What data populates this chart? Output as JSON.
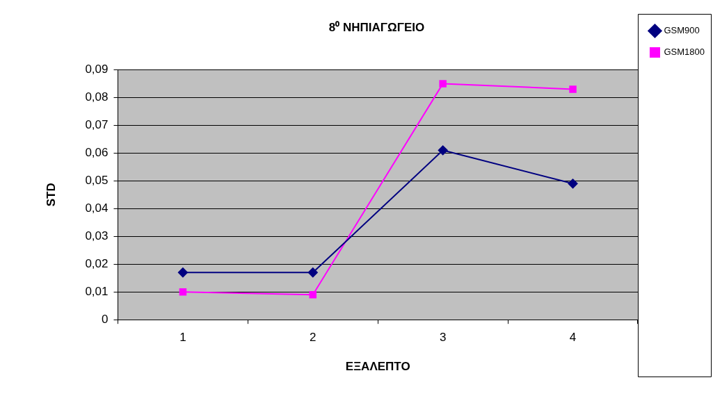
{
  "chart_data": {
    "type": "line",
    "title": "8⁰ ΝΗΠΙΑΓΩΓΕΙΟ",
    "xlabel": "ΕΞΑΛΕΠΤΟ",
    "ylabel": "STD",
    "categories": [
      "1",
      "2",
      "3",
      "4"
    ],
    "series": [
      {
        "name": "GSM900",
        "color": "#000080",
        "marker": "diamond",
        "values": [
          0.017,
          0.017,
          0.061,
          0.049
        ]
      },
      {
        "name": "GSM1800",
        "color": "#ff00ff",
        "marker": "square",
        "values": [
          0.01,
          0.009,
          0.085,
          0.083
        ]
      }
    ],
    "ylim": [
      0,
      0.09
    ],
    "yticks": [
      {
        "value": 0,
        "label": "0"
      },
      {
        "value": 0.01,
        "label": "0,01"
      },
      {
        "value": 0.02,
        "label": "0,02"
      },
      {
        "value": 0.03,
        "label": "0,03"
      },
      {
        "value": 0.04,
        "label": "0,04"
      },
      {
        "value": 0.05,
        "label": "0,05"
      },
      {
        "value": 0.06,
        "label": "0,06"
      },
      {
        "value": 0.07,
        "label": "0,07"
      },
      {
        "value": 0.08,
        "label": "0,08"
      },
      {
        "value": 0.09,
        "label": "0,09"
      }
    ],
    "grid": "y",
    "legend": "right",
    "line_style": "solid"
  }
}
